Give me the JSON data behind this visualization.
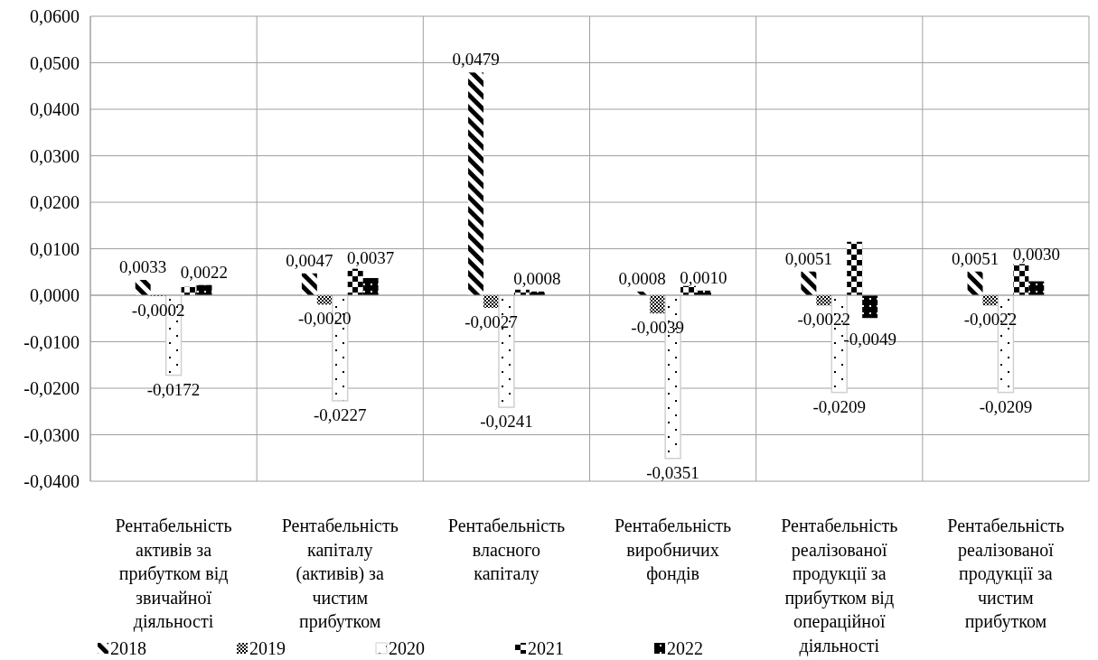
{
  "chart_data": {
    "type": "bar",
    "categories": [
      "Рентабельність активів за прибутком від звичайної діяльності",
      "Рентабельність капіталу (активів) за чистим прибутком",
      "Рентабельність власного капіталу",
      "Рентабельність виробничих фондів",
      "Рентабельність реалізованої продукції за прибутком від операційної діяльності",
      "Рентабельність реалізованої продукції за чистим прибутком"
    ],
    "series": [
      {
        "name": "2018",
        "color": "#000000",
        "values": [
          0.0033,
          0.0047,
          0.0479,
          0.0008,
          0.0051,
          0.0051
        ],
        "value_labels": [
          "0,0033",
          "0,0047",
          "0,0479",
          "0,0008",
          "0,0051",
          "0,0051"
        ]
      },
      {
        "name": "2019",
        "color": "#000000",
        "values": [
          -0.0002,
          -0.002,
          -0.0027,
          -0.0039,
          -0.0022,
          -0.0022
        ],
        "value_labels": [
          "-0,0002",
          "-0,0020",
          "-0,0027",
          "-0,0039",
          "-0,0022",
          "-0,0022"
        ]
      },
      {
        "name": "2020",
        "color": "#d0d0d0",
        "values": [
          -0.0172,
          -0.0227,
          -0.0241,
          -0.0351,
          -0.0209,
          -0.0209
        ],
        "value_labels": [
          "-0,0172",
          "-0,0227",
          "-0,0241",
          "-0,0351",
          "-0,0209",
          "-0,0209"
        ]
      },
      {
        "name": "2021",
        "color": "#000000",
        "values": [
          0.0018,
          0.0057,
          0.0012,
          0.002,
          0.0115,
          0.0067
        ],
        "value_labels": [
          null,
          null,
          null,
          null,
          null,
          null
        ]
      },
      {
        "name": "2022",
        "color": "#000000",
        "values": [
          0.0022,
          0.0037,
          0.0008,
          0.001,
          -0.0049,
          0.003
        ],
        "value_labels": [
          "0,0022",
          "0,0037",
          "0,0008",
          "0,0010",
          "-0,0049",
          "0,0030"
        ]
      }
    ],
    "ylim": [
      -0.04,
      0.06
    ],
    "yticks": [
      {
        "value": -0.04,
        "label": "-0,0400"
      },
      {
        "value": -0.03,
        "label": "-0,0300"
      },
      {
        "value": -0.02,
        "label": "-0,0200"
      },
      {
        "value": -0.01,
        "label": "-0,0100"
      },
      {
        "value": 0,
        "label": "0,0000"
      },
      {
        "value": 0.01,
        "label": "0,0100"
      },
      {
        "value": 0.02,
        "label": "0,0200"
      },
      {
        "value": 0.03,
        "label": "0,0300"
      },
      {
        "value": 0.04,
        "label": "0,0400"
      },
      {
        "value": 0.05,
        "label": "0,0500"
      },
      {
        "value": 0.06,
        "label": "0,0600"
      }
    ],
    "grid": true,
    "legend": "bottom"
  }
}
